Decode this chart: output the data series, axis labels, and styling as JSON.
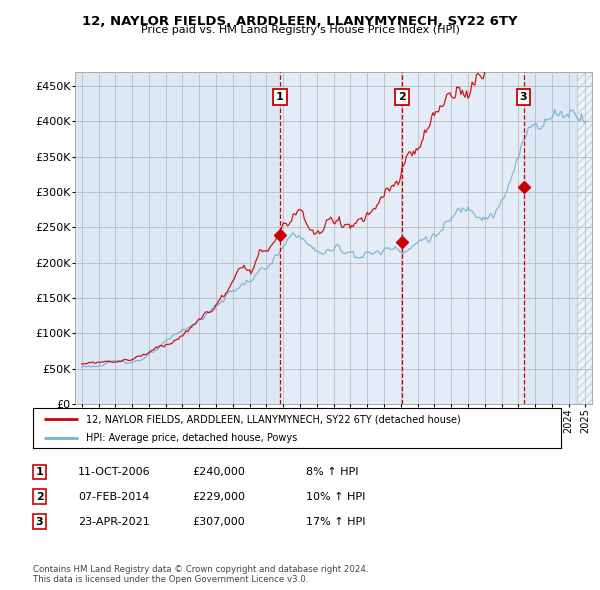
{
  "title_line1": "12, NAYLOR FIELDS, ARDDLEEN, LLANYMYNECH, SY22 6TY",
  "title_line2": "Price paid vs. HM Land Registry's House Price Index (HPI)",
  "ylabel_ticks": [
    "£0",
    "£50K",
    "£100K",
    "£150K",
    "£200K",
    "£250K",
    "£300K",
    "£350K",
    "£400K",
    "£450K"
  ],
  "ytick_values": [
    0,
    50000,
    100000,
    150000,
    200000,
    250000,
    300000,
    350000,
    400000,
    450000
  ],
  "ylim": [
    0,
    470000
  ],
  "xlim_start": 1994.6,
  "xlim_end": 2025.4,
  "sale_dates": [
    2006.78,
    2014.09,
    2021.31
  ],
  "sale_prices": [
    240000,
    229000,
    307000
  ],
  "sale_labels": [
    "1",
    "2",
    "3"
  ],
  "vline_color": "#cc0000",
  "hpi_color": "#7aafd4",
  "price_color": "#cc0000",
  "bg_color": "#dce8f5",
  "shade_color": "#ccdcee",
  "legend_price_label": "12, NAYLOR FIELDS, ARDDLEEN, LLANYMYNECH, SY22 6TY (detached house)",
  "legend_hpi_label": "HPI: Average price, detached house, Powys",
  "table_rows": [
    [
      "1",
      "11-OCT-2006",
      "£240,000",
      "8% ↑ HPI"
    ],
    [
      "2",
      "07-FEB-2014",
      "£229,000",
      "10% ↑ HPI"
    ],
    [
      "3",
      "23-APR-2021",
      "£307,000",
      "17% ↑ HPI"
    ]
  ],
  "footnote": "Contains HM Land Registry data © Crown copyright and database right 2024.\nThis data is licensed under the Open Government Licence v3.0.",
  "grid_color": "#bbbbbb",
  "hatch_alpha": 0.3
}
